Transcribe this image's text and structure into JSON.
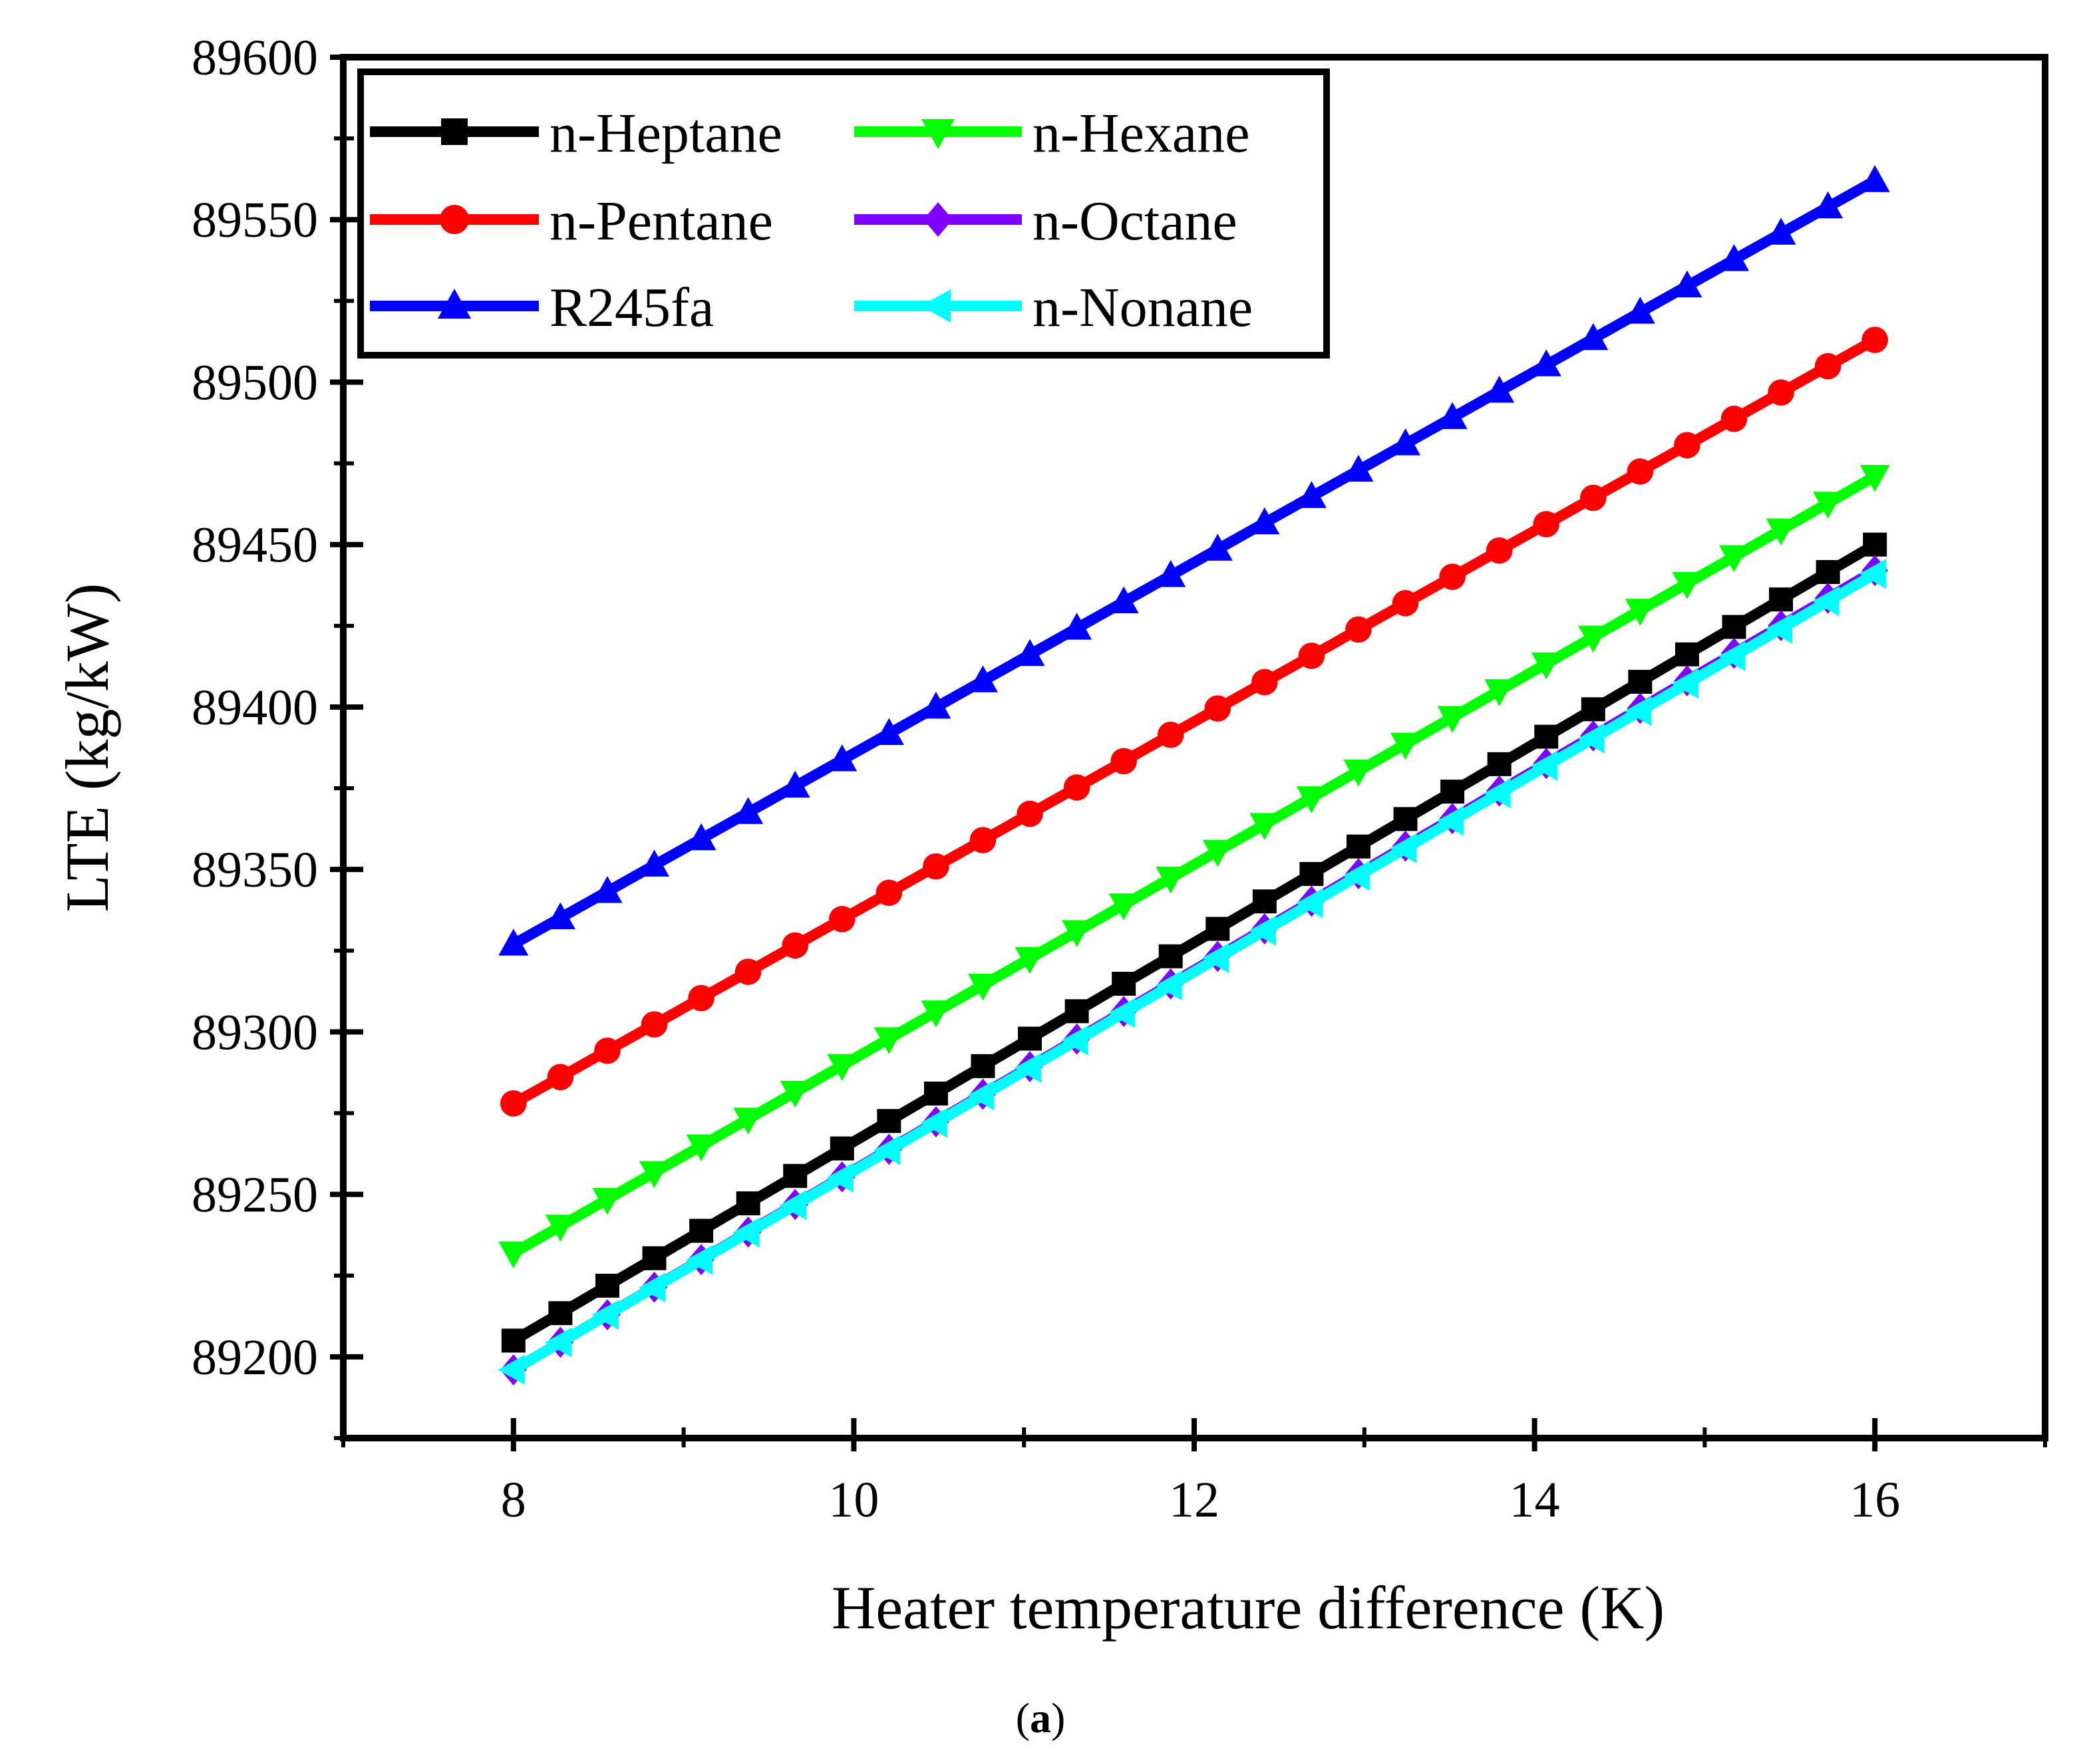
{
  "chart_data": {
    "type": "line",
    "title": "",
    "xlabel": "Heater temperature difference (K)",
    "ylabel": "LTE (kg/kW)",
    "xlim": [
      7,
      17
    ],
    "ylim": [
      89175,
      89600
    ],
    "xticks": [
      8,
      10,
      12,
      14,
      16
    ],
    "yticks": [
      89200,
      89250,
      89300,
      89350,
      89400,
      89450,
      89500,
      89550,
      89600
    ],
    "x_start": 8,
    "x_end": 16,
    "n_points": 30,
    "legend_position": "top-left",
    "series": [
      {
        "name": "n-Heptane",
        "color": "#000000",
        "marker": "square",
        "x_range": [
          8,
          16
        ],
        "y_range": [
          89205,
          89450
        ]
      },
      {
        "name": "n-Hexane",
        "color": "#00ff00",
        "marker": "triangle-down",
        "x_range": [
          8,
          16
        ],
        "y_range": [
          89232,
          89471
        ]
      },
      {
        "name": "n-Pentane",
        "color": "#ff0000",
        "marker": "circle",
        "x_range": [
          8,
          16
        ],
        "y_range": [
          89278,
          89513
        ]
      },
      {
        "name": "n-Octane",
        "color": "#8000ff",
        "marker": "diamond",
        "x_range": [
          8,
          16
        ],
        "y_range": [
          89196,
          89442
        ]
      },
      {
        "name": "R245fa",
        "color": "#0000ff",
        "marker": "triangle-up",
        "x_range": [
          8,
          16
        ],
        "y_range": [
          89327,
          89562
        ]
      },
      {
        "name": "n-Nonane",
        "color": "#00ffff",
        "marker": "triangle-left",
        "x_range": [
          8,
          16
        ],
        "y_range": [
          89196,
          89441
        ]
      }
    ],
    "legend_order": [
      "n-Heptane",
      "n-Hexane",
      "n-Pentane",
      "n-Octane",
      "R245fa",
      "n-Nonane"
    ]
  },
  "caption": {
    "open": "(",
    "label": "a",
    "close": ")"
  }
}
